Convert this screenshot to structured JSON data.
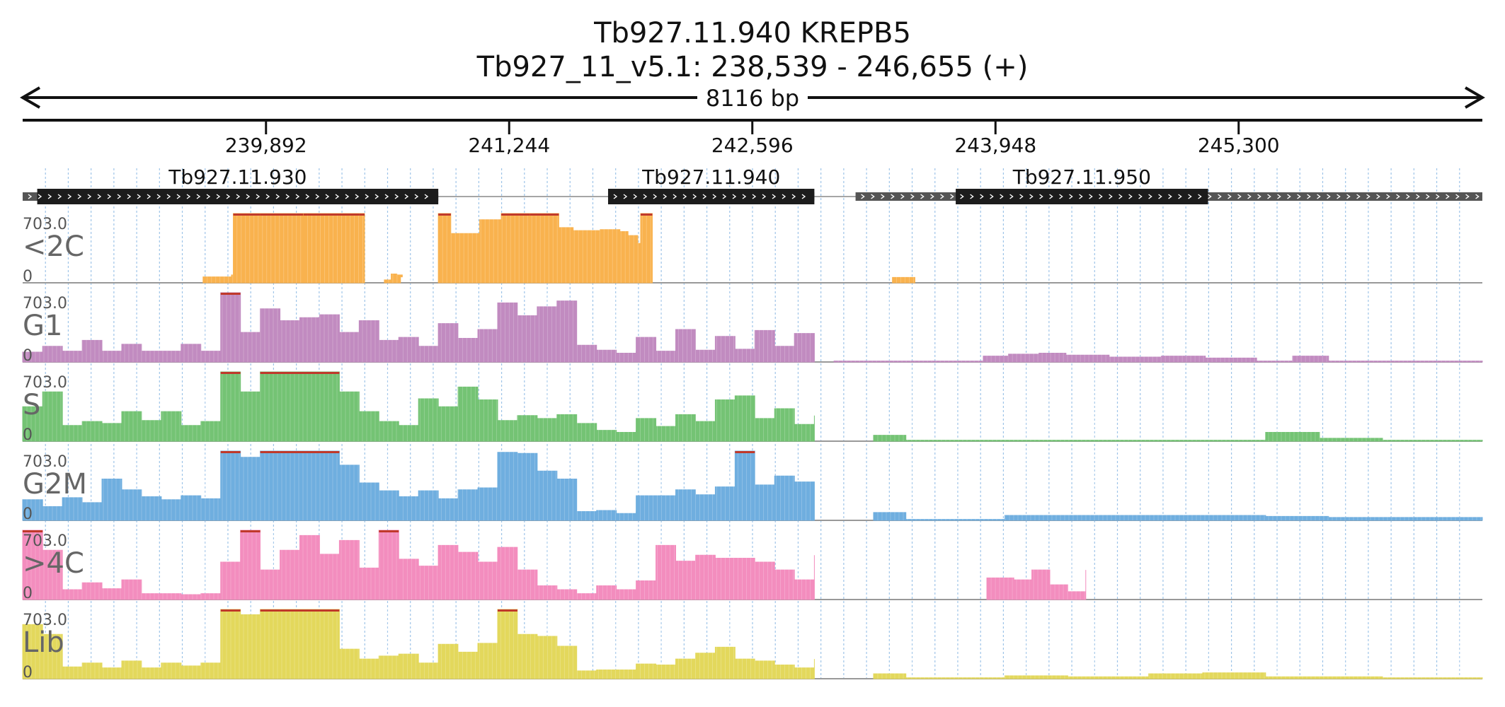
{
  "title": {
    "gene": "Tb927.11.940  KREPB5",
    "locus": "Tb927_11_v5.1: 238,539 - 246,655 (+)"
  },
  "ruler": {
    "span_label": "8116 bp"
  },
  "chart_data": {
    "type": "area",
    "x_unit": "bp",
    "xlim": [
      238539,
      246655
    ],
    "ticks": [
      {
        "pos": 239892,
        "label": "239,892"
      },
      {
        "pos": 241244,
        "label": "241,244"
      },
      {
        "pos": 242596,
        "label": "242,596"
      },
      {
        "pos": 243948,
        "label": "243,948"
      },
      {
        "pos": 245300,
        "label": "245,300"
      }
    ],
    "genes": [
      {
        "name": "Tb927.11.930",
        "utr": [
          238539,
          239997
        ],
        "cds": [
          238620,
          240850
        ]
      },
      {
        "name": "Tb927.11.940",
        "utr": [
          241794,
          242941
        ],
        "cds": [
          241794,
          242941
        ]
      },
      {
        "name": "Tb927.11.950",
        "utr": [
          243170,
          246655
        ],
        "cds": [
          243727,
          245130
        ]
      }
    ],
    "tracks": [
      {
        "name": "<2C",
        "max_label": "703.0",
        "min_label": "0",
        "color": "#F9B24E",
        "segments": [
          {
            "x": [
              239542,
              239700,
              239710,
              239860,
              240062,
              240100
            ],
            "y": [
              60,
              80,
              703,
              703,
              703,
              0
            ]
          },
          {
            "x": [
              240100,
              240125,
              240410,
              240440
            ],
            "y": [
              703,
              703,
              703,
              0
            ]
          },
          {
            "x": [
              240550,
              240588,
              240620,
              240650,
              240640
            ],
            "y": [
              30,
              90,
              80,
              60,
              0
            ]
          },
          {
            "x": [
              240850,
              240920,
              241080,
              241200,
              241360,
              241520,
              241600,
              241750,
              241860,
              241905,
              241960,
              241975,
              242040
            ],
            "y": [
              703,
              500,
              640,
              703,
              703,
              560,
              530,
              540,
              520,
              480,
              400,
              703,
              0
            ]
          },
          {
            "x": [
              243375,
              243500
            ],
            "y": [
              55,
              0
            ]
          }
        ]
      },
      {
        "name": "G1",
        "max_label": "703.0",
        "min_label": "0",
        "color": "#C18BC0",
        "segments": [
          {
            "x": [
              238539,
              238650,
              238760,
              238870,
              238980,
              239090,
              239200,
              239310,
              239420,
              239530,
              239640,
              239750,
              239860,
              239970,
              240080,
              240190,
              240300,
              240410,
              240520,
              240630
            ],
            "y": [
              100,
              160,
              110,
              220,
              110,
              180,
              110,
              110,
              180,
              110,
              703,
              300,
              540,
              420,
              450,
              480,
              300,
              420,
              220,
              110
            ]
          },
          {
            "x": [
              240630,
              240740,
              240850,
              240960,
              241070,
              241180,
              241290,
              241400,
              241510,
              241620,
              241730,
              241840,
              241950
            ],
            "y": [
              250,
              160,
              390,
              240,
              330,
              600,
              470,
              560,
              620,
              170,
              120,
              90,
              110
            ]
          },
          {
            "x": [
              241950,
              242060,
              242170,
              242280,
              242390,
              242500,
              242610,
              242720,
              242830,
              242941
            ],
            "y": [
              250,
              110,
              330,
              120,
              260,
              130,
              320,
              160,
              290,
              180
            ]
          },
          {
            "x": [
              243050,
              243550,
              243880,
              244020,
              244190,
              244340,
              244580,
              244870,
              245115,
              245400,
              245600,
              245800,
              246000,
              246300,
              246655
            ],
            "y": [
              10,
              10,
              60,
              80,
              90,
              70,
              50,
              60,
              40,
              10,
              60,
              10,
              10,
              10,
              10
            ]
          }
        ]
      },
      {
        "name": "S",
        "max_label": "703.0",
        "min_label": "0",
        "color": "#74C374",
        "segments": [
          {
            "x": [
              238539,
              238650,
              238760,
              238870,
              238980,
              239090,
              239200,
              239310,
              239420,
              239530,
              239640,
              239750,
              239860,
              239970,
              240080,
              240190,
              240300,
              240410,
              240520,
              240630
            ],
            "y": [
              350,
              500,
              160,
              200,
              180,
              300,
              210,
              300,
              160,
              200,
              703,
              500,
              703,
              703,
              703,
              703,
              500,
              300,
              200,
              170
            ]
          },
          {
            "x": [
              240630,
              240740,
              240850,
              240960,
              241070,
              241180,
              241290,
              241400,
              241510,
              241620,
              241730,
              241840,
              241950
            ],
            "y": [
              160,
              430,
              350,
              550,
              420,
              210,
              260,
              230,
              270,
              180,
              110,
              90,
              110
            ]
          },
          {
            "x": [
              241950,
              242060,
              242170,
              242280,
              242390,
              242500,
              242610,
              242720,
              242830,
              242941
            ],
            "y": [
              230,
              150,
              270,
              200,
              420,
              460,
              230,
              330,
              170,
              260
            ]
          },
          {
            "x": [
              243270,
              243450,
              245450,
              245750,
              246100,
              246655
            ],
            "y": [
              60,
              10,
              90,
              30,
              10,
              10
            ]
          }
        ]
      },
      {
        "name": "G2M",
        "max_label": "703.0",
        "min_label": "0",
        "color": "#6FAEDF",
        "segments": [
          {
            "x": [
              238539,
              238650,
              238760,
              238870,
              238980,
              239090,
              239200,
              239310,
              239420,
              239530,
              239640,
              239750,
              239860,
              239970,
              240080,
              240190,
              240300,
              240410,
              240520,
              240630
            ],
            "y": [
              210,
              140,
              230,
              180,
              420,
              310,
              240,
              210,
              250,
              220,
              703,
              640,
              703,
              703,
              703,
              703,
              560,
              380,
              300,
              240
            ]
          },
          {
            "x": [
              240630,
              240740,
              240850,
              240960,
              241070,
              241180,
              241290,
              241400,
              241510,
              241620,
              241730,
              241840,
              241950
            ],
            "y": [
              240,
              300,
              220,
              310,
              330,
              690,
              680,
              500,
              420,
              90,
              100,
              70,
              90
            ]
          },
          {
            "x": [
              241950,
              242060,
              242170,
              242280,
              242390,
              242500,
              242610,
              242720,
              242830,
              242941
            ],
            "y": [
              250,
              250,
              310,
              260,
              340,
              703,
              360,
              450,
              390,
              310
            ]
          },
          {
            "x": [
              243270,
              243450,
              244000,
              244350,
              244800,
              245450,
              245800,
              246100,
              246655
            ],
            "y": [
              80,
              10,
              50,
              50,
              50,
              40,
              30,
              30,
              20
            ]
          }
        ]
      },
      {
        "name": ">4C",
        "max_label": "703.0",
        "min_label": "0",
        "color": "#F38DBE",
        "segments": [
          {
            "x": [
              238539,
              238650,
              238760,
              238870,
              238980,
              239090,
              239200,
              239310,
              239420,
              239530,
              239640,
              239750,
              239860,
              239970,
              240080,
              240190,
              240300,
              240410,
              240520,
              240630
            ],
            "y": [
              703,
              500,
              100,
              170,
              110,
              200,
              60,
              60,
              50,
              60,
              380,
              703,
              300,
              500,
              650,
              460,
              600,
              320,
              703,
              140
            ]
          },
          {
            "x": [
              240630,
              240740,
              240850,
              240960,
              241070,
              241180,
              241290,
              241400,
              241510,
              241620,
              241730,
              241840,
              241950
            ],
            "y": [
              410,
              340,
              550,
              480,
              380,
              530,
              300,
              140,
              100,
              60,
              140,
              100,
              90
            ]
          },
          {
            "x": [
              241950,
              242060,
              242170,
              242280,
              242390,
              242500,
              242610,
              242720,
              242830,
              242941
            ],
            "y": [
              190,
              550,
              390,
              450,
              420,
              420,
              380,
              300,
              200,
              450
            ]
          },
          {
            "x": [
              243900,
              244050,
              244150,
              244250,
              244350,
              244450
            ],
            "y": [
              220,
              200,
              300,
              150,
              80,
              300
            ]
          }
        ]
      },
      {
        "name": "Lib",
        "max_label": "703.0",
        "min_label": "0",
        "color": "#E3D85C",
        "segments": [
          {
            "x": [
              238539,
              238650,
              238760,
              238870,
              238980,
              239090,
              239200,
              239310,
              239420,
              239530,
              239640,
              239750,
              239860,
              239970,
              240080,
              240190,
              240300,
              240410,
              240520,
              240630
            ],
            "y": [
              550,
              450,
              120,
              160,
              110,
              180,
              110,
              160,
              130,
              160,
              703,
              650,
              703,
              703,
              703,
              703,
              300,
              200,
              230,
              180
            ]
          },
          {
            "x": [
              240630,
              240740,
              240850,
              240960,
              241070,
              241180,
              241290,
              241400,
              241510,
              241620,
              241730,
              241840,
              241950
            ],
            "y": [
              250,
              160,
              350,
              270,
              360,
              703,
              450,
              430,
              330,
              80,
              90,
              90,
              100
            ]
          },
          {
            "x": [
              241950,
              242060,
              242170,
              242280,
              242390,
              242500,
              242610,
              242720,
              242830,
              242941
            ],
            "y": [
              150,
              140,
              200,
              260,
              320,
              200,
              180,
              140,
              110,
              200
            ]
          },
          {
            "x": [
              243270,
              243450,
              244000,
              244350,
              244800,
              245100,
              245450,
              245800,
              246100,
              246655
            ],
            "y": [
              50,
              10,
              30,
              20,
              50,
              60,
              20,
              20,
              10,
              10
            ]
          }
        ]
      }
    ]
  }
}
